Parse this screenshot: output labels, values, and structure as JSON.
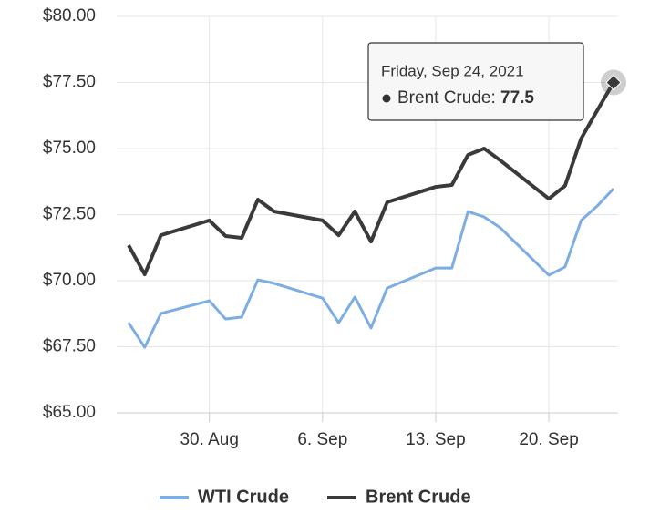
{
  "chart_data": {
    "type": "line",
    "x": [
      "Aug 25",
      "Aug 26",
      "Aug 27",
      "Aug 30",
      "Aug 31",
      "Sep 1",
      "Sep 2",
      "Sep 3",
      "Sep 6",
      "Sep 7",
      "Sep 8",
      "Sep 9",
      "Sep 10",
      "Sep 13",
      "Sep 14",
      "Sep 15",
      "Sep 16",
      "Sep 17",
      "Sep 20",
      "Sep 21",
      "Sep 22",
      "Sep 23",
      "Sep 24"
    ],
    "series": [
      {
        "name": "WTI Crude",
        "color": "#7cade3",
        "values": [
          68.41,
          67.48,
          68.76,
          69.24,
          68.55,
          68.62,
          70.03,
          69.9,
          69.34,
          68.41,
          69.38,
          68.21,
          69.72,
          70.48,
          70.48,
          72.62,
          72.41,
          72.0,
          70.21,
          70.52,
          72.28,
          72.83,
          73.48
        ]
      },
      {
        "name": "Brent Crude",
        "color": "#3a3a3c",
        "values": [
          71.34,
          70.24,
          71.72,
          72.28,
          71.69,
          71.62,
          73.07,
          72.62,
          72.28,
          71.72,
          72.62,
          71.48,
          72.97,
          73.55,
          73.62,
          74.76,
          75.0,
          74.55,
          73.1,
          73.59,
          75.38,
          76.45,
          77.5
        ]
      }
    ],
    "xlim": [
      "Aug 25",
      "Sep 24"
    ],
    "xticks": [
      {
        "value": "Aug 30",
        "label": "30. Aug"
      },
      {
        "value": "Sep 6",
        "label": "6. Sep"
      },
      {
        "value": "Sep 13",
        "label": "13. Sep"
      },
      {
        "value": "Sep 20",
        "label": "20. Sep"
      }
    ],
    "ylim": [
      65,
      80
    ],
    "yticks": [
      {
        "value": 65,
        "label": "$65.00"
      },
      {
        "value": 67.5,
        "label": "$67.50"
      },
      {
        "value": 70,
        "label": "$70.00"
      },
      {
        "value": 72.5,
        "label": "$72.50"
      },
      {
        "value": 75,
        "label": "$75.00"
      },
      {
        "value": 77.5,
        "label": "$77.50"
      },
      {
        "value": 80,
        "label": "$80.00"
      }
    ],
    "grid": true,
    "legend": "bottom",
    "tooltip": {
      "title": "Friday, Sep 24, 2021",
      "label": "Brent Crude:",
      "value": 77.5
    }
  }
}
